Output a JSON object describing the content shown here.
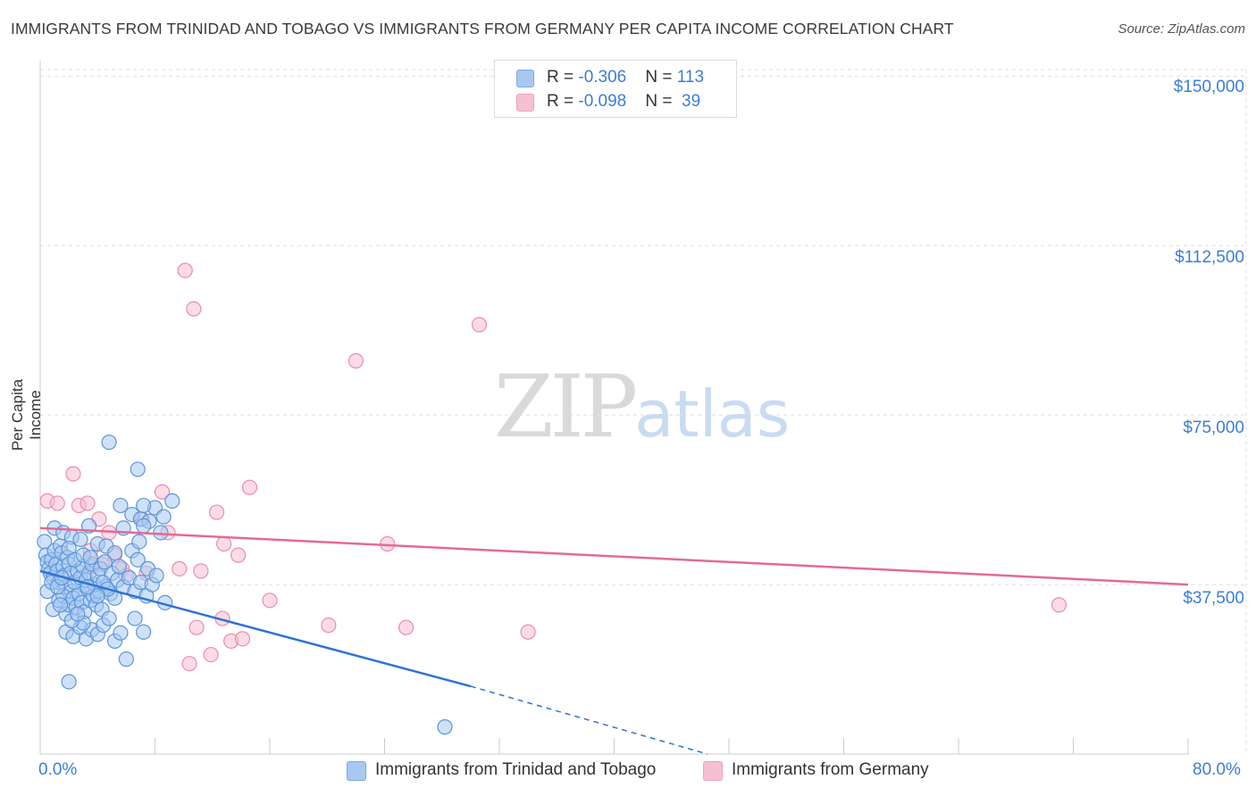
{
  "title": "IMMIGRANTS FROM TRINIDAD AND TOBAGO VS IMMIGRANTS FROM GERMANY PER CAPITA INCOME CORRELATION CHART",
  "source": "Source: ZipAtlas.com",
  "watermark": {
    "zip": "ZIP",
    "atlas": "atlas"
  },
  "legend": {
    "rows": [
      {
        "r_label": "R = ",
        "r_value": "-0.306",
        "n_label": "N = ",
        "n_value": "113",
        "color": "#9ec2ef"
      },
      {
        "r_label": "R = ",
        "r_value": "-0.098",
        "n_label": "N = ",
        "n_value": " 39",
        "color": "#f5b8cb"
      }
    ]
  },
  "colors": {
    "blue_fill": "#a8c8f0",
    "blue_stroke": "#5b96dc",
    "blue_line": "#2e74d4",
    "pink_fill": "#f7c0d2",
    "pink_stroke": "#eb8cab",
    "pink_line": "#e46a95",
    "axis_label": "#3b7dd8",
    "grid": "#dddddd"
  },
  "chart_data": {
    "type": "scatter",
    "title": "IMMIGRANTS FROM TRINIDAD AND TOBAGO VS IMMIGRANTS FROM GERMANY PER CAPITA INCOME CORRELATION CHART",
    "xlabel": "",
    "ylabel": "Per Capita Income",
    "xlim": [
      0,
      80
    ],
    "ylim": [
      0,
      155000
    ],
    "x_tick_labels": [
      "0.0%",
      "80.0%"
    ],
    "y_ticks": [
      37500,
      75000,
      112500,
      150000
    ],
    "y_tick_labels": [
      "$37,500",
      "$75,000",
      "$112,500",
      "$150,000"
    ],
    "series": [
      {
        "name": "Immigrants from Trinidad and Tobago",
        "color": "#a8c8f0",
        "points": [
          [
            0.3,
            47000
          ],
          [
            0.4,
            44000
          ],
          [
            0.5,
            42500
          ],
          [
            0.6,
            41000
          ],
          [
            0.7,
            40000
          ],
          [
            0.8,
            43000
          ],
          [
            0.9,
            39000
          ],
          [
            1.0,
            45000
          ],
          [
            1.1,
            42000
          ],
          [
            1.2,
            40500
          ],
          [
            1.3,
            38000
          ],
          [
            1.4,
            46000
          ],
          [
            1.5,
            44500
          ],
          [
            1.6,
            41500
          ],
          [
            1.7,
            39500
          ],
          [
            1.8,
            37000
          ],
          [
            1.9,
            43500
          ],
          [
            2.0,
            42000
          ],
          [
            2.1,
            40000
          ],
          [
            2.2,
            36000
          ],
          [
            0.5,
            36000
          ],
          [
            0.9,
            32000
          ],
          [
            1.3,
            34000
          ],
          [
            1.6,
            35000
          ],
          [
            1.8,
            31000
          ],
          [
            2.0,
            33000
          ],
          [
            2.3,
            34500
          ],
          [
            2.5,
            32500
          ],
          [
            2.7,
            35500
          ],
          [
            2.9,
            33500
          ],
          [
            3.1,
            31500
          ],
          [
            3.3,
            36500
          ],
          [
            3.5,
            34000
          ],
          [
            3.7,
            35000
          ],
          [
            3.9,
            33000
          ],
          [
            4.1,
            36000
          ],
          [
            4.3,
            32000
          ],
          [
            4.6,
            37000
          ],
          [
            4.9,
            35500
          ],
          [
            5.2,
            34500
          ],
          [
            2.4,
            38000
          ],
          [
            2.6,
            40500
          ],
          [
            2.8,
            39000
          ],
          [
            3.0,
            41500
          ],
          [
            3.2,
            38500
          ],
          [
            3.4,
            40000
          ],
          [
            3.6,
            42000
          ],
          [
            3.8,
            37500
          ],
          [
            4.0,
            39500
          ],
          [
            4.2,
            41000
          ],
          [
            4.4,
            38000
          ],
          [
            4.7,
            36500
          ],
          [
            5.0,
            40000
          ],
          [
            5.4,
            38500
          ],
          [
            5.8,
            37000
          ],
          [
            6.2,
            39000
          ],
          [
            6.6,
            36000
          ],
          [
            7.0,
            38000
          ],
          [
            7.4,
            35000
          ],
          [
            7.8,
            37500
          ],
          [
            1.0,
            50000
          ],
          [
            1.6,
            49000
          ],
          [
            2.2,
            48000
          ],
          [
            2.8,
            47500
          ],
          [
            3.4,
            50500
          ],
          [
            4.0,
            46500
          ],
          [
            4.6,
            46000
          ],
          [
            5.2,
            44500
          ],
          [
            5.8,
            50000
          ],
          [
            6.4,
            45000
          ],
          [
            1.8,
            27000
          ],
          [
            2.3,
            26000
          ],
          [
            2.8,
            28000
          ],
          [
            3.2,
            25500
          ],
          [
            3.6,
            27500
          ],
          [
            4.0,
            26500
          ],
          [
            4.4,
            28500
          ],
          [
            4.8,
            30000
          ],
          [
            5.2,
            25000
          ],
          [
            5.6,
            26800
          ],
          [
            6.0,
            21000
          ],
          [
            6.6,
            30000
          ],
          [
            7.2,
            27000
          ],
          [
            3.0,
            29000
          ],
          [
            2.2,
            29500
          ],
          [
            1.4,
            33000
          ],
          [
            2.6,
            31000
          ],
          [
            0.8,
            38000
          ],
          [
            1.2,
            37000
          ],
          [
            1.5,
            39000
          ],
          [
            2.0,
            45500
          ],
          [
            2.4,
            43000
          ],
          [
            3.0,
            44000
          ],
          [
            3.5,
            43500
          ],
          [
            4.5,
            42500
          ],
          [
            5.5,
            41500
          ],
          [
            6.8,
            43000
          ],
          [
            7.5,
            41000
          ],
          [
            8.1,
            39500
          ],
          [
            8.7,
            33500
          ],
          [
            6.4,
            53000
          ],
          [
            7.0,
            52000
          ],
          [
            7.6,
            51500
          ],
          [
            8.0,
            54500
          ],
          [
            8.6,
            52500
          ],
          [
            9.2,
            56000
          ],
          [
            5.6,
            55000
          ],
          [
            6.9,
            47000
          ],
          [
            7.2,
            50500
          ],
          [
            8.4,
            49000
          ],
          [
            4.8,
            69000
          ],
          [
            6.8,
            63000
          ],
          [
            2.0,
            16000
          ],
          [
            7.2,
            55000
          ],
          [
            4.0,
            35000
          ],
          [
            3.3,
            37000
          ],
          [
            28.2,
            6000
          ]
        ]
      },
      {
        "name": "Immigrants from Germany",
        "color": "#f7c0d2",
        "points": [
          [
            10.1,
            107000
          ],
          [
            10.7,
            98500
          ],
          [
            30.6,
            95000
          ],
          [
            22.0,
            87000
          ],
          [
            2.3,
            62000
          ],
          [
            0.5,
            56000
          ],
          [
            1.2,
            55500
          ],
          [
            2.7,
            55000
          ],
          [
            3.3,
            55500
          ],
          [
            7.1,
            52000
          ],
          [
            8.5,
            58000
          ],
          [
            14.6,
            59000
          ],
          [
            12.3,
            53500
          ],
          [
            4.8,
            49000
          ],
          [
            8.9,
            49000
          ],
          [
            12.8,
            46500
          ],
          [
            24.2,
            46500
          ],
          [
            5.2,
            44000
          ],
          [
            9.7,
            41000
          ],
          [
            11.2,
            40500
          ],
          [
            13.8,
            44000
          ],
          [
            3.6,
            41500
          ],
          [
            5.7,
            41000
          ],
          [
            7.4,
            40000
          ],
          [
            4.3,
            42000
          ],
          [
            16.0,
            34000
          ],
          [
            20.1,
            28500
          ],
          [
            25.5,
            28000
          ],
          [
            34.0,
            27000
          ],
          [
            10.9,
            28000
          ],
          [
            12.7,
            30000
          ],
          [
            13.3,
            25000
          ],
          [
            14.1,
            25500
          ],
          [
            10.4,
            20000
          ],
          [
            11.9,
            22000
          ],
          [
            71.0,
            33000
          ],
          [
            4.1,
            52000
          ],
          [
            3.5,
            45000
          ],
          [
            6.0,
            39500
          ]
        ]
      }
    ],
    "trend_lines": [
      {
        "series": "Immigrants from Trinidad and Tobago",
        "x": [
          0,
          30
        ],
        "y": [
          40500,
          15000
        ],
        "dashed_extension_x": [
          30,
          46.5
        ],
        "dashed_extension_y": [
          15000,
          0
        ]
      },
      {
        "series": "Immigrants from Germany",
        "x": [
          0,
          80
        ],
        "y": [
          50000,
          37500
        ]
      }
    ]
  },
  "axis": {
    "y_title": "Per Capita Income",
    "x_left": "0.0%",
    "x_right": "80.0%",
    "y_labels": [
      "$150,000",
      "$112,500",
      "$75,000",
      "$37,500"
    ]
  },
  "bottom_legend": [
    {
      "label": "Immigrants from Trinidad and Tobago",
      "color": "#a8c8f0"
    },
    {
      "label": "Immigrants from Germany",
      "color": "#f7c0d2"
    }
  ]
}
